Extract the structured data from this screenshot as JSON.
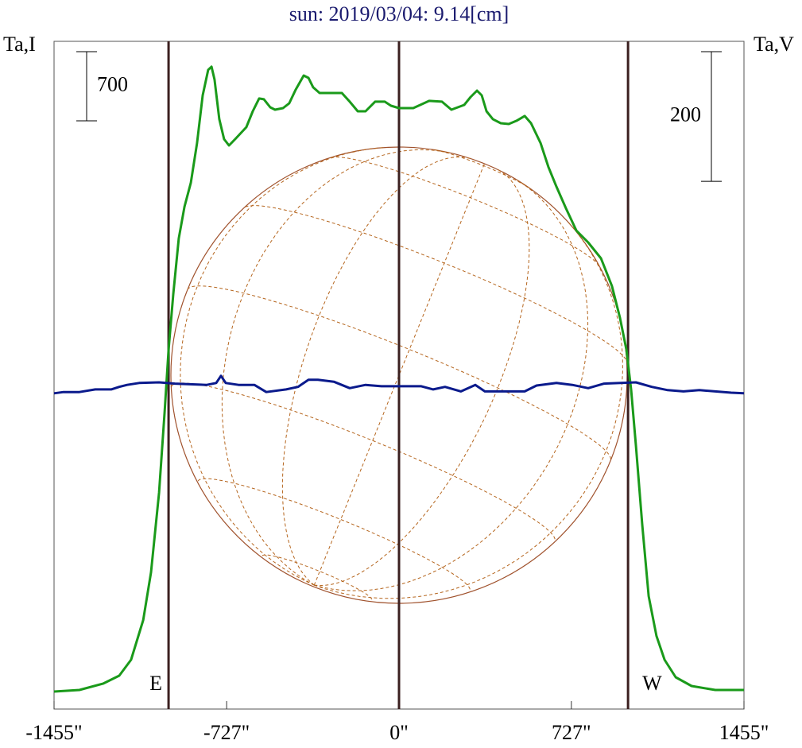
{
  "chart_data": {
    "type": "line",
    "title": "sun: 2019/03/04: 9.14[cm]",
    "y_label": "Ta,I",
    "y2_label": "Ta,V",
    "xlim": [
      -1455,
      1455
    ],
    "xticks": [
      {
        "value": -1455,
        "label": "-1455\""
      },
      {
        "value": -727,
        "label": "-727\""
      },
      {
        "value": 0,
        "label": "0\""
      },
      {
        "value": 727,
        "label": "727\""
      },
      {
        "value": 1455,
        "label": "1455\""
      }
    ],
    "ylim": [
      0,
      6760
    ],
    "y2lim": [
      -515,
      515
    ],
    "scale_bars": [
      {
        "value": 700,
        "axis": "y"
      },
      {
        "value": 200,
        "axis": "y2"
      }
    ],
    "vlines": [
      {
        "value": -972,
        "label": "E"
      },
      {
        "value": 0
      },
      {
        "value": 966,
        "label": "W"
      }
    ],
    "series": [
      {
        "color": "#1a9a1a",
        "axis": "y",
        "x": [
          -1455,
          -1348,
          -1247,
          -1180,
          -1130,
          -1079,
          -1046,
          -1012,
          -989,
          -972,
          -952,
          -929,
          -905,
          -878,
          -852,
          -828,
          -805,
          -791,
          -778,
          -758,
          -738,
          -717,
          -691,
          -644,
          -617,
          -590,
          -570,
          -543,
          -523,
          -489,
          -463,
          -436,
          -402,
          -382,
          -362,
          -335,
          -241,
          -208,
          -174,
          -141,
          -101,
          -60,
          -34,
          0,
          60,
          127,
          181,
          221,
          275,
          302,
          329,
          349,
          369,
          396,
          429,
          463,
          496,
          530,
          557,
          597,
          630,
          664,
          704,
          748,
          798,
          852,
          898,
          932,
          959,
          979,
          999,
          1026,
          1053,
          1086,
          1120,
          1167,
          1234,
          1334,
          1455
        ],
        "values": [
          177,
          193,
          258,
          338,
          499,
          901,
          1384,
          2189,
          2994,
          3638,
          4201,
          4764,
          5086,
          5328,
          5730,
          6213,
          6471,
          6503,
          6374,
          5972,
          5770,
          5706,
          5770,
          5891,
          6052,
          6181,
          6173,
          6092,
          6068,
          6084,
          6133,
          6269,
          6414,
          6390,
          6294,
          6237,
          6237,
          6149,
          6052,
          6052,
          6149,
          6149,
          6108,
          6084,
          6084,
          6157,
          6149,
          6068,
          6116,
          6197,
          6261,
          6213,
          6052,
          5972,
          5931,
          5923,
          5956,
          6004,
          5931,
          5730,
          5489,
          5288,
          5070,
          4845,
          4724,
          4563,
          4282,
          3960,
          3638,
          3235,
          2672,
          1867,
          1143,
          740,
          499,
          322,
          233,
          193,
          193
        ]
      },
      {
        "color": "#0a1a8c",
        "axis": "y2",
        "x": [
          -1455,
          -1415,
          -1348,
          -1281,
          -1214,
          -1180,
          -1147,
          -1096,
          -1012,
          -945,
          -811,
          -771,
          -751,
          -731,
          -677,
          -610,
          -560,
          -476,
          -426,
          -382,
          -342,
          -275,
          -208,
          -141,
          -74,
          94,
          144,
          194,
          261,
          322,
          362,
          530,
          580,
          664,
          731,
          798,
          865,
          999,
          1066,
          1133,
          1200,
          1267,
          1401,
          1455
        ],
        "values": [
          -28,
          -26,
          -26,
          -22,
          -22,
          -18,
          -15,
          -12,
          -11,
          -13,
          -15,
          -12,
          -1,
          -12,
          -15,
          -15,
          -26,
          -22,
          -18,
          -7,
          -7,
          -10,
          -20,
          -15,
          -17,
          -17,
          -22,
          -18,
          -25,
          -15,
          -25,
          -25,
          -16,
          -12,
          -15,
          -20,
          -13,
          -11,
          -18,
          -23,
          -25,
          -23,
          -27,
          -28
        ]
      }
    ]
  }
}
